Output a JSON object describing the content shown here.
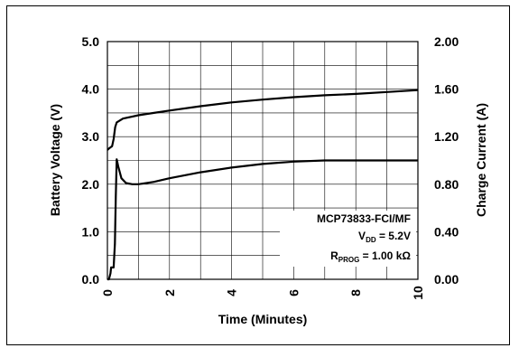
{
  "chart_data": {
    "type": "line",
    "title": "",
    "xlabel": "Time (Minutes)",
    "ylabel_left": "Battery Voltage (V)",
    "ylabel_right": "Charge Current (A)",
    "xlim": [
      0,
      10
    ],
    "ylim_left": [
      0.0,
      5.0
    ],
    "ylim_right": [
      0.0,
      2.0
    ],
    "x_ticks": [
      "0",
      "2",
      "4",
      "6",
      "8",
      "10"
    ],
    "y_ticks_left": [
      "0.0",
      "1.0",
      "2.0",
      "3.0",
      "4.0",
      "5.0"
    ],
    "y_ticks_right": [
      "0.00",
      "0.40",
      "0.80",
      "1.20",
      "1.60",
      "2.00"
    ],
    "grid": true,
    "annotation": {
      "device": "MCP73833-FCI/MF",
      "vdd_main": "V",
      "vdd_sub": "DD",
      "vdd_value": " = 5.2V",
      "rprog_main": "R",
      "rprog_sub": "PROG",
      "rprog_value": " = 1.00 kΩ"
    },
    "series": [
      {
        "axis": "left",
        "x": [
          0.0,
          0.05,
          0.15,
          0.2,
          0.25,
          0.3,
          0.5,
          1,
          1.5,
          2,
          3,
          4,
          5,
          6,
          7,
          8,
          9,
          10
        ],
        "y": [
          2.72,
          2.75,
          2.8,
          2.95,
          3.2,
          3.3,
          3.38,
          3.45,
          3.5,
          3.55,
          3.64,
          3.72,
          3.78,
          3.83,
          3.87,
          3.9,
          3.94,
          3.98
        ]
      },
      {
        "axis": "right",
        "x": [
          0.0,
          0.05,
          0.1,
          0.12,
          0.2,
          0.24,
          0.27,
          0.3,
          0.35,
          0.45,
          0.6,
          0.8,
          1.0,
          1.5,
          2,
          3,
          4,
          5,
          6,
          7,
          8,
          9,
          10
        ],
        "y": [
          0.0,
          0.0,
          0.05,
          0.1,
          0.1,
          0.3,
          0.7,
          1.01,
          0.95,
          0.85,
          0.81,
          0.8,
          0.8,
          0.82,
          0.85,
          0.9,
          0.94,
          0.97,
          0.99,
          1.0,
          1.0,
          1.0,
          1.0
        ]
      }
    ]
  }
}
